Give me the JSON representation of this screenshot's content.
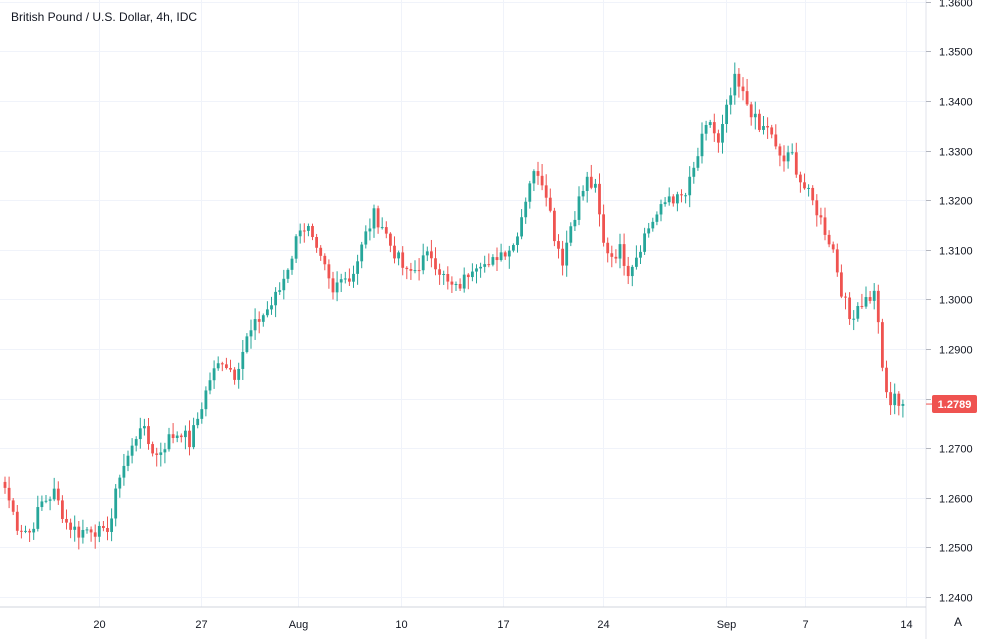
{
  "chart_data": {
    "type": "candlestick",
    "title": "British Pound / U.S. Dollar, 4h, IDC",
    "xlabel": "",
    "ylabel": "",
    "ylim": [
      1.24,
      1.36
    ],
    "y_ticks": [
      "1.2400",
      "1.2500",
      "1.2600",
      "1.2700",
      "1.2800",
      "1.2900",
      "1.3000",
      "1.3100",
      "1.3200",
      "1.3300",
      "1.3400",
      "1.3500",
      "1.3600"
    ],
    "x_ticks": [
      "20",
      "27",
      "Aug",
      "10",
      "17",
      "24",
      "Sep",
      "7",
      "14"
    ],
    "last_price": "1.2789",
    "grid": true,
    "up_color": "#26a69a",
    "down_color": "#ef5350",
    "close_path": [
      [
        0,
        1.262
      ],
      [
        3,
        1.2545
      ],
      [
        6,
        1.253
      ],
      [
        9,
        1.259
      ],
      [
        12,
        1.261
      ],
      [
        15,
        1.255
      ],
      [
        18,
        1.253
      ],
      [
        21,
        1.254
      ],
      [
        24,
        1.2525
      ],
      [
        26,
        1.256
      ],
      [
        28,
        1.265
      ],
      [
        31,
        1.27
      ],
      [
        33,
        1.275
      ],
      [
        35,
        1.271
      ],
      [
        37,
        1.2685
      ],
      [
        40,
        1.272
      ],
      [
        43,
        1.2735
      ],
      [
        45,
        1.271
      ],
      [
        47,
        1.276
      ],
      [
        50,
        1.284
      ],
      [
        53,
        1.288
      ],
      [
        56,
        1.285
      ],
      [
        59,
        1.292
      ],
      [
        62,
        1.296
      ],
      [
        65,
        1.299
      ],
      [
        67,
        1.302
      ],
      [
        70,
        1.309
      ],
      [
        72,
        1.315
      ],
      [
        74,
        1.314
      ],
      [
        76,
        1.309
      ],
      [
        78,
        1.306
      ],
      [
        80,
        1.301
      ],
      [
        82,
        1.3055
      ],
      [
        84,
        1.304
      ],
      [
        86,
        1.308
      ],
      [
        88,
        1.313
      ],
      [
        90,
        1.317
      ],
      [
        92,
        1.315
      ],
      [
        94,
        1.311
      ],
      [
        96,
        1.308
      ],
      [
        98,
        1.305
      ],
      [
        100,
        1.306
      ],
      [
        102,
        1.308
      ],
      [
        104,
        1.309
      ],
      [
        106,
        1.306
      ],
      [
        108,
        1.303
      ],
      [
        110,
        1.302
      ],
      [
        112,
        1.304
      ],
      [
        114,
        1.307
      ],
      [
        116,
        1.308
      ],
      [
        118,
        1.306
      ],
      [
        120,
        1.309
      ],
      [
        122,
        1.31
      ],
      [
        124,
        1.311
      ],
      [
        126,
        1.317
      ],
      [
        128,
        1.324
      ],
      [
        130,
        1.326
      ],
      [
        132,
        1.322
      ],
      [
        134,
        1.313
      ],
      [
        136,
        1.308
      ],
      [
        138,
        1.315
      ],
      [
        140,
        1.32
      ],
      [
        142,
        1.324
      ],
      [
        144,
        1.322
      ],
      [
        146,
        1.311
      ],
      [
        148,
        1.309
      ],
      [
        150,
        1.31
      ],
      [
        152,
        1.306
      ],
      [
        154,
        1.309
      ],
      [
        156,
        1.313
      ],
      [
        158,
        1.316
      ],
      [
        160,
        1.318
      ],
      [
        162,
        1.321
      ],
      [
        164,
        1.32
      ],
      [
        166,
        1.321
      ],
      [
        168,
        1.326
      ],
      [
        170,
        1.332
      ],
      [
        172,
        1.336
      ],
      [
        174,
        1.331
      ],
      [
        176,
        1.338
      ],
      [
        178,
        1.344
      ],
      [
        180,
        1.341
      ],
      [
        182,
        1.338
      ],
      [
        184,
        1.334
      ],
      [
        186,
        1.335
      ],
      [
        188,
        1.33
      ],
      [
        190,
        1.328
      ],
      [
        192,
        1.329
      ],
      [
        194,
        1.324
      ],
      [
        196,
        1.321
      ],
      [
        198,
        1.318
      ],
      [
        200,
        1.314
      ],
      [
        202,
        1.31
      ],
      [
        204,
        1.302
      ],
      [
        206,
        1.296
      ],
      [
        208,
        1.299
      ],
      [
        210,
        1.3
      ],
      [
        212,
        1.301
      ],
      [
        213,
        1.296
      ],
      [
        214,
        1.285
      ],
      [
        215,
        1.281
      ],
      [
        216,
        1.279
      ],
      [
        217,
        1.28
      ],
      [
        218,
        1.2795
      ],
      [
        219,
        1.2789
      ]
    ]
  }
}
